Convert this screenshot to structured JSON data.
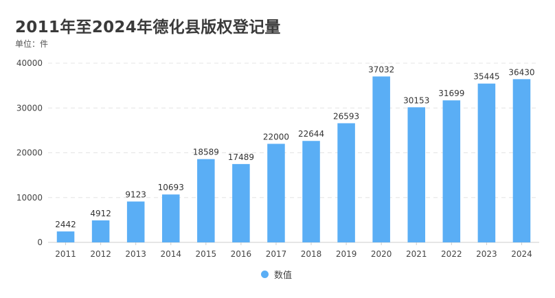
{
  "title": "2011年至2024年德化县版权登记量",
  "subtitle": "单位：件",
  "colors": {
    "bar": "#5aaef5",
    "grid": "#e4e4e4",
    "axis": "#cccccc"
  },
  "chart_data": {
    "type": "bar",
    "title": "2011年至2024年德化县版权登记量",
    "subtitle": "单位：件",
    "xlabel": "",
    "ylabel": "",
    "categories": [
      "2011",
      "2012",
      "2013",
      "2014",
      "2015",
      "2016",
      "2017",
      "2018",
      "2019",
      "2020",
      "2021",
      "2022",
      "2023",
      "2024"
    ],
    "series": [
      {
        "name": "数值",
        "values": [
          2442,
          4912,
          9123,
          10693,
          18589,
          17489,
          22000,
          22644,
          26593,
          37032,
          30153,
          31699,
          35445,
          36430
        ]
      }
    ],
    "ylim": [
      0,
      40000
    ],
    "yticks": [
      0,
      10000,
      20000,
      30000,
      40000
    ],
    "grid": true,
    "data_labels": true,
    "legend": {
      "position": "bottom",
      "entries": [
        "数值"
      ]
    }
  }
}
